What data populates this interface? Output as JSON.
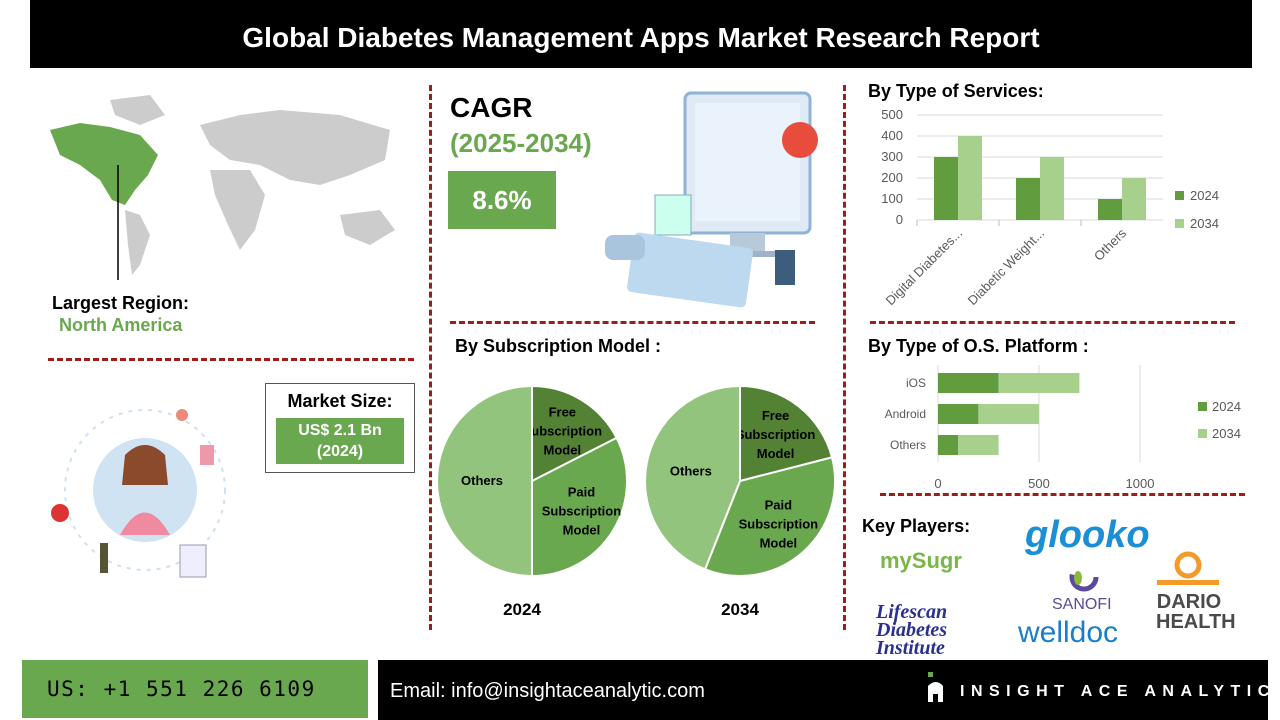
{
  "header": {
    "title": "Global Diabetes Management Apps Market Research Report"
  },
  "region": {
    "label": "Largest Region:",
    "value": "North America"
  },
  "cagr": {
    "title": "CAGR",
    "years": "(2025-2034)",
    "value": "8.6%"
  },
  "market_size": {
    "title": "Market Size:",
    "value_line1": "US$ 2.1 Bn",
    "value_line2": "(2024)"
  },
  "colors": {
    "accent": "#6aa84f",
    "series_2024": "#619c3f",
    "series_2034": "#a8d08d",
    "pie_free": "#548235",
    "pie_paid": "#6aa84f",
    "pie_others": "#93c47d",
    "divider": "#a01c1c"
  },
  "key_players": {
    "title": "Key Players:",
    "logos": [
      "mySugr",
      "glooko",
      "SANOFI",
      "Lifescan Diabetes Institute",
      "welldoc",
      "DARIO HEALTH"
    ]
  },
  "footer": {
    "phone": "US: +1 551 226 6109",
    "email": "Email: info@insightaceanalytic.com",
    "brand": "INSIGHT ACE ANALYTIC"
  },
  "chart_data": [
    {
      "type": "bar",
      "title": "By Type of Services:",
      "categories": [
        "Digital Diabetes...",
        "Diabetic Weight...",
        "Others"
      ],
      "series": [
        {
          "name": "2024",
          "values": [
            300,
            200,
            100
          ]
        },
        {
          "name": "2034",
          "values": [
            400,
            300,
            200
          ]
        }
      ],
      "ylim": [
        0,
        500
      ],
      "yticks": [
        "0",
        "100",
        "200",
        "300",
        "400",
        "500"
      ],
      "grid": true,
      "legend": "right"
    },
    {
      "type": "bar",
      "orientation": "horizontal",
      "stacked": true,
      "title": "By Type of O.S. Platform :",
      "categories": [
        "iOS",
        "Android",
        "Others"
      ],
      "series": [
        {
          "name": "2024",
          "values": [
            300,
            200,
            100
          ]
        },
        {
          "name": "2034",
          "values": [
            400,
            300,
            200
          ]
        }
      ],
      "xlim": [
        0,
        1000
      ],
      "xticks": [
        "0",
        "500",
        "1000"
      ],
      "grid": true,
      "legend": "right"
    },
    {
      "type": "pie",
      "title": "By Subscription Model :",
      "caption": "2024",
      "slices": [
        {
          "label": "Free Subscription Model",
          "value": 17.5
        },
        {
          "label": "Paid Subscription Model",
          "value": 32.5
        },
        {
          "label": "Others",
          "value": 50
        }
      ]
    },
    {
      "type": "pie",
      "caption": "2034",
      "slices": [
        {
          "label": "Free Subscription Model",
          "value": 21
        },
        {
          "label": "Paid Subscription Model",
          "value": 35
        },
        {
          "label": "Others",
          "value": 44
        }
      ]
    }
  ]
}
